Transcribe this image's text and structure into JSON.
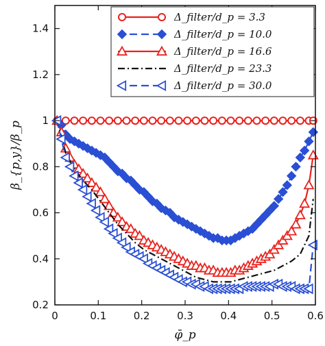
{
  "chart_data": {
    "type": "line",
    "title": "",
    "xlabel": "φ̄_p",
    "ylabel": "β_{p,y}/β_p",
    "xlim": [
      0,
      0.6
    ],
    "ylim": [
      0.2,
      1.5
    ],
    "x_ticks": [
      "0",
      "0.1",
      "0.2",
      "0.3",
      "0.4",
      "0.5",
      "0.6"
    ],
    "y_ticks": [
      "0.2",
      "0.4",
      "0.6",
      "0.8",
      "1",
      "1.2",
      "1.4"
    ],
    "x_tick_values": [
      0,
      0.1,
      0.2,
      0.3,
      0.4,
      0.5,
      0.6
    ],
    "y_tick_values": [
      0.2,
      0.4,
      0.6,
      0.8,
      1.0,
      1.2,
      1.4
    ],
    "grid": false,
    "legend_position": "top-right",
    "series": [
      {
        "name": "Δ_filter/d_p = 3.3",
        "color": "#e8221e",
        "marker": "circle-open",
        "line": "solid",
        "x": [
          0.005,
          0.025,
          0.045,
          0.065,
          0.085,
          0.105,
          0.125,
          0.145,
          0.165,
          0.185,
          0.205,
          0.225,
          0.245,
          0.265,
          0.285,
          0.305,
          0.325,
          0.345,
          0.365,
          0.385,
          0.405,
          0.425,
          0.445,
          0.465,
          0.485,
          0.505,
          0.525,
          0.545,
          0.565,
          0.585,
          0.595
        ],
        "y": [
          1.0,
          1.0,
          1.0,
          1.0,
          1.0,
          1.0,
          1.0,
          1.0,
          1.0,
          1.0,
          1.0,
          1.0,
          1.0,
          1.0,
          1.0,
          1.0,
          1.0,
          1.0,
          1.0,
          1.0,
          1.0,
          1.0,
          1.0,
          1.0,
          1.0,
          1.0,
          1.0,
          1.0,
          1.0,
          1.0,
          1.0
        ]
      },
      {
        "name": "Δ_filter/d_p = 10.0",
        "color": "#2a4fd4",
        "marker": "diamond-filled",
        "line": "dashed",
        "x": [
          0.005,
          0.015,
          0.025,
          0.035,
          0.045,
          0.055,
          0.065,
          0.075,
          0.085,
          0.095,
          0.105,
          0.115,
          0.125,
          0.135,
          0.145,
          0.155,
          0.165,
          0.175,
          0.185,
          0.195,
          0.205,
          0.215,
          0.225,
          0.235,
          0.245,
          0.255,
          0.265,
          0.275,
          0.285,
          0.295,
          0.305,
          0.315,
          0.325,
          0.335,
          0.345,
          0.355,
          0.365,
          0.375,
          0.385,
          0.395,
          0.405,
          0.415,
          0.425,
          0.435,
          0.445,
          0.455,
          0.465,
          0.475,
          0.485,
          0.495,
          0.505,
          0.515,
          0.525,
          0.535,
          0.545,
          0.555,
          0.565,
          0.575,
          0.585,
          0.595
        ],
        "y": [
          1.0,
          0.98,
          0.94,
          0.92,
          0.91,
          0.9,
          0.89,
          0.88,
          0.87,
          0.86,
          0.85,
          0.84,
          0.82,
          0.8,
          0.78,
          0.77,
          0.75,
          0.74,
          0.72,
          0.7,
          0.69,
          0.67,
          0.65,
          0.64,
          0.62,
          0.61,
          0.6,
          0.58,
          0.57,
          0.56,
          0.55,
          0.54,
          0.53,
          0.52,
          0.51,
          0.5,
          0.49,
          0.49,
          0.48,
          0.48,
          0.48,
          0.49,
          0.5,
          0.51,
          0.52,
          0.53,
          0.55,
          0.57,
          0.59,
          0.61,
          0.63,
          0.66,
          0.69,
          0.72,
          0.76,
          0.8,
          0.84,
          0.87,
          0.91,
          0.95
        ]
      },
      {
        "name": "Δ_filter/d_p = 16.6",
        "color": "#e8221e",
        "marker": "triangle-open",
        "line": "solid",
        "x": [
          0.005,
          0.015,
          0.025,
          0.035,
          0.045,
          0.055,
          0.065,
          0.075,
          0.085,
          0.095,
          0.105,
          0.115,
          0.125,
          0.135,
          0.145,
          0.155,
          0.165,
          0.175,
          0.185,
          0.195,
          0.205,
          0.215,
          0.225,
          0.235,
          0.245,
          0.255,
          0.265,
          0.275,
          0.285,
          0.295,
          0.305,
          0.315,
          0.325,
          0.335,
          0.345,
          0.355,
          0.365,
          0.375,
          0.385,
          0.395,
          0.405,
          0.415,
          0.425,
          0.435,
          0.445,
          0.455,
          0.465,
          0.475,
          0.485,
          0.495,
          0.505,
          0.515,
          0.525,
          0.535,
          0.545,
          0.555,
          0.565,
          0.575,
          0.585,
          0.595
        ],
        "y": [
          1.0,
          0.95,
          0.88,
          0.84,
          0.81,
          0.79,
          0.77,
          0.75,
          0.73,
          0.71,
          0.69,
          0.66,
          0.63,
          0.6,
          0.58,
          0.56,
          0.54,
          0.53,
          0.51,
          0.5,
          0.48,
          0.47,
          0.46,
          0.45,
          0.44,
          0.43,
          0.42,
          0.41,
          0.4,
          0.39,
          0.38,
          0.37,
          0.37,
          0.36,
          0.36,
          0.35,
          0.35,
          0.34,
          0.34,
          0.34,
          0.34,
          0.35,
          0.35,
          0.36,
          0.37,
          0.38,
          0.39,
          0.4,
          0.41,
          0.42,
          0.44,
          0.46,
          0.48,
          0.5,
          0.52,
          0.55,
          0.59,
          0.64,
          0.72,
          0.85
        ]
      },
      {
        "name": "Δ_filter/d_p = 23.3",
        "color": "#111111",
        "marker": "none",
        "line": "dash-dot",
        "x": [
          0.005,
          0.025,
          0.045,
          0.065,
          0.085,
          0.105,
          0.125,
          0.145,
          0.165,
          0.185,
          0.205,
          0.225,
          0.245,
          0.265,
          0.285,
          0.305,
          0.325,
          0.345,
          0.365,
          0.385,
          0.405,
          0.425,
          0.445,
          0.465,
          0.485,
          0.505,
          0.525,
          0.545,
          0.565,
          0.585,
          0.595
        ],
        "y": [
          1.0,
          0.86,
          0.79,
          0.74,
          0.7,
          0.65,
          0.6,
          0.55,
          0.51,
          0.47,
          0.44,
          0.42,
          0.4,
          0.38,
          0.36,
          0.34,
          0.32,
          0.31,
          0.3,
          0.3,
          0.3,
          0.31,
          0.32,
          0.33,
          0.34,
          0.35,
          0.37,
          0.39,
          0.42,
          0.5,
          0.66
        ]
      },
      {
        "name": "Δ_filter/d_p = 30.0",
        "color": "#2a4fd4",
        "marker": "triangle-left-open",
        "line": "dashed",
        "x": [
          0.005,
          0.015,
          0.025,
          0.035,
          0.045,
          0.055,
          0.065,
          0.075,
          0.085,
          0.095,
          0.105,
          0.115,
          0.125,
          0.135,
          0.145,
          0.155,
          0.165,
          0.175,
          0.185,
          0.195,
          0.205,
          0.215,
          0.225,
          0.235,
          0.245,
          0.255,
          0.265,
          0.275,
          0.285,
          0.295,
          0.305,
          0.315,
          0.325,
          0.335,
          0.345,
          0.355,
          0.365,
          0.375,
          0.385,
          0.395,
          0.405,
          0.415,
          0.425,
          0.435,
          0.445,
          0.455,
          0.465,
          0.475,
          0.485,
          0.495,
          0.505,
          0.515,
          0.525,
          0.535,
          0.545,
          0.555,
          0.565,
          0.575,
          0.585,
          0.595
        ],
        "y": [
          1.0,
          0.92,
          0.84,
          0.8,
          0.76,
          0.73,
          0.7,
          0.67,
          0.64,
          0.61,
          0.58,
          0.56,
          0.53,
          0.51,
          0.49,
          0.47,
          0.45,
          0.43,
          0.42,
          0.41,
          0.4,
          0.38,
          0.37,
          0.36,
          0.35,
          0.34,
          0.33,
          0.32,
          0.31,
          0.3,
          0.3,
          0.29,
          0.29,
          0.28,
          0.28,
          0.27,
          0.27,
          0.27,
          0.27,
          0.27,
          0.27,
          0.27,
          0.27,
          0.28,
          0.28,
          0.28,
          0.28,
          0.28,
          0.28,
          0.28,
          0.29,
          0.29,
          0.28,
          0.28,
          0.28,
          0.27,
          0.27,
          0.27,
          0.27,
          0.46
        ]
      }
    ]
  }
}
